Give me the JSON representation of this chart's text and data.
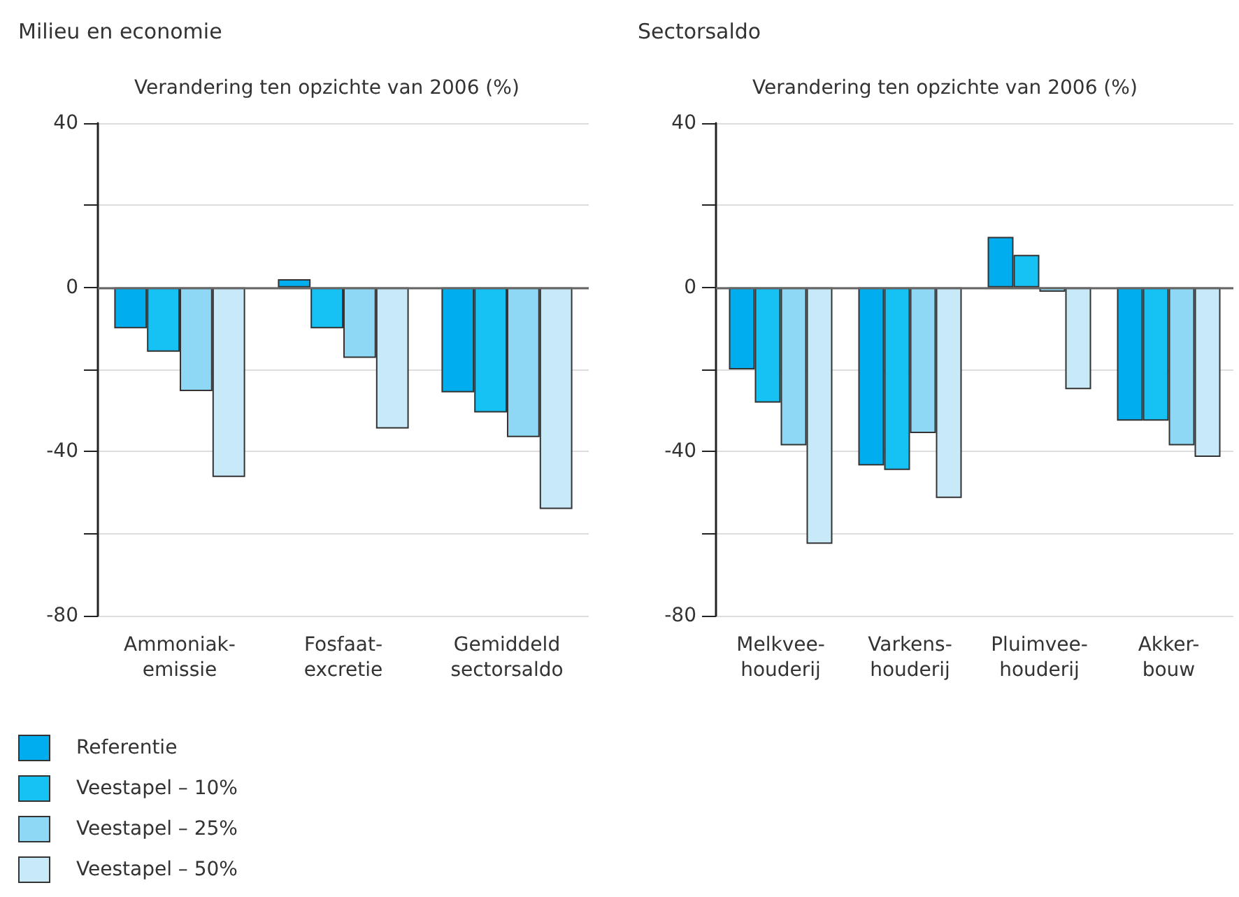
{
  "chart_data": [
    {
      "type": "bar",
      "title": "Milieu en economie",
      "ylabel": "Verandering ten opzichte van 2006 (%)",
      "categories": [
        "Ammoniak-\nemissie",
        "Fosfaat-\nexcretie",
        "Gemiddeld\nsectorsaldo"
      ],
      "series": [
        {
          "name": "Referentie",
          "color": "#00aeef",
          "values": [
            -10,
            2,
            -25.6
          ]
        },
        {
          "name": "Veestapel – 10%",
          "color": "#16c1f3",
          "values": [
            -15.7,
            -10,
            -30.5
          ]
        },
        {
          "name": "Veestapel – 25%",
          "color": "#8fd8f5",
          "values": [
            -25.3,
            -17.2,
            -36.5
          ]
        },
        {
          "name": "Veestapel – 50%",
          "color": "#c8e9f8",
          "values": [
            -46.2,
            -34.4,
            -54
          ]
        }
      ],
      "ylim": [
        -80,
        40
      ],
      "yticks": [
        -80,
        {
          "value": -60,
          "label": null
        },
        -40,
        {
          "value": -20,
          "label": null
        },
        0,
        {
          "value": 20,
          "label": null
        },
        40
      ],
      "grid": "y",
      "legend": "bottom left"
    },
    {
      "type": "bar",
      "title": "Sectorsaldo",
      "ylabel": "Verandering ten opzichte van 2006 (%)",
      "categories": [
        "Melkvee-\nhouderij",
        "Varkens-\nhouderij",
        "Pluimvee-\nhouderij",
        "Akker-\nbouw"
      ],
      "series": [
        {
          "color": "#00aeef",
          "values": [
            -20,
            -43.4,
            12.3,
            -32.5
          ]
        },
        {
          "color": "#16c1f3",
          "values": [
            -28.1,
            -44.5,
            7.9,
            -32.5
          ]
        },
        {
          "color": "#8fd8f5",
          "values": [
            -38.5,
            -35.5,
            -1.1,
            -38.5
          ]
        },
        {
          "color": "#c8e9f8",
          "values": [
            -62.5,
            -51.3,
            -24.8,
            -41.3
          ]
        }
      ],
      "ylim": [
        -80,
        40
      ],
      "yticks": [
        -80,
        {
          "value": -60,
          "label": null
        },
        -40,
        {
          "value": -20,
          "label": null
        },
        0,
        {
          "value": 20,
          "label": null
        },
        40
      ],
      "grid": "y",
      "legend": false
    }
  ]
}
